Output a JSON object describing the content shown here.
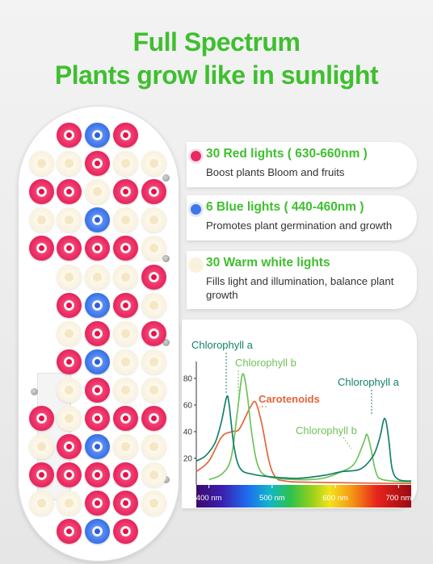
{
  "header": {
    "line1": "Full Spectrum",
    "line2": "Plants grow like in sunlight"
  },
  "colors": {
    "accent_green": "#3fbf2f",
    "red_led": "#ea2a62",
    "blue_led": "#3f77ea",
    "warm_white_led": "#f9f1de",
    "chlorophyll_a": "#15816a",
    "chlorophyll_b": "#6fc25a",
    "carotenoids": "#e4643a"
  },
  "panel": {
    "led_grid": [
      "_rbr_",
      "wwrww",
      "rrwrr",
      "wwbww",
      "rrrrw",
      "_wwwr",
      "_rbrw",
      "_wrwr",
      "_rbww",
      "_wrww",
      "rwrrr",
      "wrbww",
      "rrrrw",
      "wwrrw",
      "_rbr_"
    ]
  },
  "lights": [
    {
      "icon": "red-dot-icon",
      "title": "30 Red lights ( 630-660nm )",
      "desc": "Boost plants Bloom and fruits"
    },
    {
      "icon": "blue-dot-icon",
      "title": "6 Blue lights ( 440-460nm )",
      "desc": "Promotes plant germination and growth"
    },
    {
      "icon": "warm-white-dot-icon",
      "title": "30 Warm white lights",
      "desc": "Fills light and illumination, balance plant growth"
    }
  ],
  "chart_data": {
    "type": "line",
    "title": "",
    "xlabel": "",
    "ylabel": "",
    "x_ticks": [
      "400 nm",
      "500 nm",
      "600 nm",
      "700 nm"
    ],
    "y_ticks": [
      20,
      40,
      60,
      80
    ],
    "xlim": [
      380,
      720
    ],
    "ylim": [
      0,
      100
    ],
    "series": [
      {
        "name": "Chlorophyll a",
        "color": "#15816a",
        "points": [
          [
            380,
            18
          ],
          [
            395,
            22
          ],
          [
            410,
            32
          ],
          [
            420,
            48
          ],
          [
            428,
            66
          ],
          [
            432,
            60
          ],
          [
            440,
            28
          ],
          [
            450,
            12
          ],
          [
            470,
            8
          ],
          [
            500,
            6
          ],
          [
            540,
            5
          ],
          [
            580,
            7
          ],
          [
            610,
            10
          ],
          [
            640,
            12
          ],
          [
            660,
            22
          ],
          [
            670,
            35
          ],
          [
            678,
            50
          ],
          [
            684,
            36
          ],
          [
            690,
            12
          ],
          [
            700,
            4
          ],
          [
            720,
            3
          ]
        ]
      },
      {
        "name": "Chlorophyll b",
        "color": "#6fc25a",
        "points": [
          [
            400,
            4
          ],
          [
            420,
            8
          ],
          [
            435,
            20
          ],
          [
            445,
            55
          ],
          [
            453,
            83
          ],
          [
            460,
            70
          ],
          [
            468,
            38
          ],
          [
            478,
            14
          ],
          [
            495,
            6
          ],
          [
            540,
            4
          ],
          [
            580,
            5
          ],
          [
            610,
            10
          ],
          [
            630,
            16
          ],
          [
            645,
            32
          ],
          [
            650,
            38
          ],
          [
            656,
            28
          ],
          [
            664,
            10
          ],
          [
            675,
            4
          ],
          [
            720,
            2
          ]
        ]
      },
      {
        "name": "Carotenoids",
        "color": "#e4643a",
        "points": [
          [
            380,
            10
          ],
          [
            400,
            18
          ],
          [
            420,
            36
          ],
          [
            436,
            40
          ],
          [
            448,
            42
          ],
          [
            465,
            58
          ],
          [
            474,
            62
          ],
          [
            484,
            45
          ],
          [
            495,
            18
          ],
          [
            505,
            6
          ],
          [
            520,
            3
          ],
          [
            560,
            2
          ],
          [
            720,
            1
          ]
        ]
      }
    ],
    "annotations": [
      {
        "text": "Chlorophyll a",
        "series": "Chlorophyll a"
      },
      {
        "text": "Chlorophyll b",
        "series": "Chlorophyll b"
      },
      {
        "text": "Carotenoids",
        "series": "Carotenoids"
      },
      {
        "text": "Chlorophyll a",
        "series": "Chlorophyll a"
      },
      {
        "text": "Chlorophyll b",
        "series": "Chlorophyll b"
      }
    ]
  }
}
